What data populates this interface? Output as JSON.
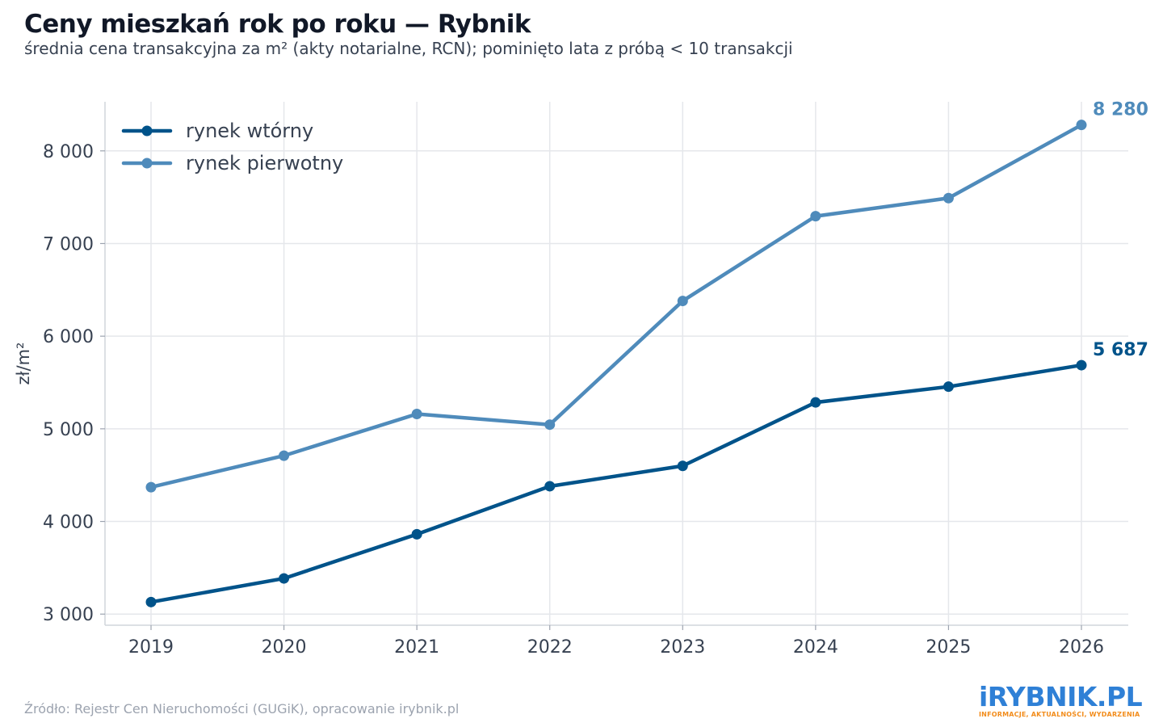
{
  "title": "Ceny mieszkań rok po roku — Rybnik",
  "subtitle": "średnia cena transakcyjna za m² (akty notarialne, RCN); pominięto lata z próbą < 10 transakcji",
  "source": "Źródło: Rejestr Cen Nieruchomości (GUGiK), opracowanie irybnik.pl",
  "logo": {
    "text": "iRYBNIK.PL",
    "tagline": "INFORMACJE, AKTUALNOŚCI, WYDARZENIA"
  },
  "colors": {
    "wtorny": "#00538a",
    "pierwotny": "#4f8bbb",
    "grid": "#e5e7eb",
    "axis_text": "#374151"
  },
  "chart_data": {
    "type": "line",
    "title": "Ceny mieszkań rok po roku — Rybnik",
    "subtitle": "średnia cena transakcyjna za m² (akty notarialne, RCN); pominięto lata z próbą < 10 transakcji",
    "xlabel": "",
    "ylabel": "zł/m²",
    "x": [
      2019,
      2020,
      2021,
      2022,
      2023,
      2024,
      2025,
      2026
    ],
    "x_tick_labels": [
      "2019",
      "2020",
      "2021",
      "2022",
      "2023",
      "2024",
      "2025",
      "2026"
    ],
    "y_ticks": [
      3000,
      4000,
      5000,
      6000,
      7000,
      8000
    ],
    "y_tick_labels": [
      "3 000",
      "4 000",
      "5 000",
      "6 000",
      "7 000",
      "8 000"
    ],
    "ylim": [
      2880,
      8530
    ],
    "grid": true,
    "legend": "top-left",
    "series": [
      {
        "name": "rynek wtórny",
        "color": "#00538a",
        "values": [
          3130,
          3385,
          3862,
          4380,
          4600,
          5285,
          5455,
          5687
        ],
        "end_label": "5 687"
      },
      {
        "name": "rynek pierwotny",
        "color": "#4f8bbb",
        "values": [
          4370,
          4710,
          5160,
          5045,
          6380,
          7295,
          7490,
          8280
        ],
        "end_label": "8 280"
      }
    ]
  }
}
